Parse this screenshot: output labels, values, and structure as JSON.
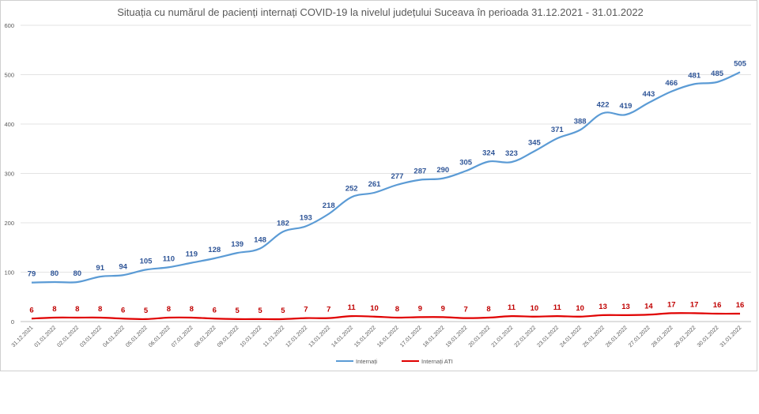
{
  "chart_data": {
    "type": "line",
    "title": "Situația cu numărul de pacienți internați COVID-19 la nivelul județului Suceava în perioada 31.12.2021 - 31.01.2022",
    "xlabel": "",
    "ylabel": "",
    "ylim": [
      0,
      600
    ],
    "yticks": [
      0,
      100,
      200,
      300,
      400,
      500,
      600
    ],
    "grid": true,
    "legend_position": "bottom",
    "categories": [
      "31.12.2021",
      "01.01.2022",
      "02.01.2022",
      "03.01.2022",
      "04.01.2022",
      "05.01.2022",
      "06.01.2022",
      "07.01.2022",
      "08.01.2022",
      "09.01.2022",
      "10.01.2022",
      "11.01.2022",
      "12.01.2022",
      "13.01.2022",
      "14.01.2022",
      "15.01.2022",
      "16.01.2022",
      "17.01.2022",
      "18.01.2022",
      "19.01.2022",
      "20.01.2022",
      "21.01.2022",
      "22.01.2022",
      "23.01.2022",
      "24.01.2022",
      "25.01.2022",
      "26.01.2022",
      "27.01.2022",
      "28.01.2022",
      "29.01.2022",
      "30.01.2022",
      "31.01.2022"
    ],
    "series": [
      {
        "name": "Internați",
        "color": "#5b9bd5",
        "label_color": "#2f5597",
        "values": [
          79,
          80,
          80,
          91,
          94,
          105,
          110,
          119,
          128,
          139,
          148,
          182,
          193,
          218,
          252,
          261,
          277,
          287,
          290,
          305,
          324,
          323,
          345,
          371,
          388,
          422,
          419,
          443,
          466,
          481,
          485,
          505
        ]
      },
      {
        "name": "Internați ATI",
        "color": "#e00000",
        "label_color": "#c00000",
        "values": [
          6,
          8,
          8,
          8,
          6,
          5,
          8,
          8,
          6,
          5,
          5,
          5,
          7,
          7,
          11,
          10,
          8,
          9,
          9,
          7,
          8,
          11,
          10,
          11,
          10,
          13,
          13,
          14,
          17,
          17,
          16,
          16
        ]
      }
    ]
  }
}
